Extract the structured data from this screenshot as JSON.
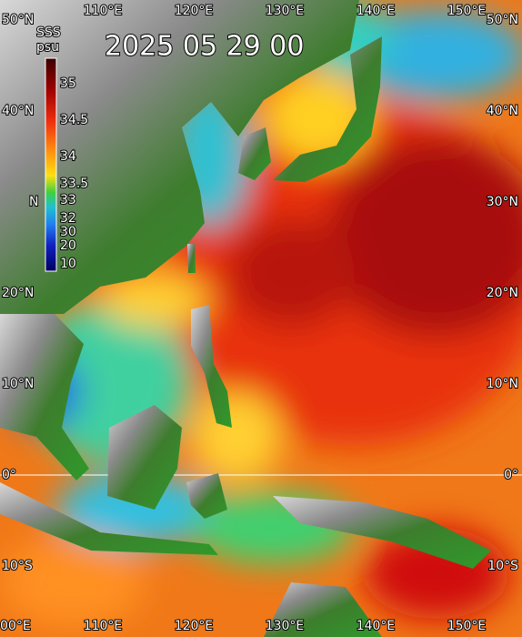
{
  "map": {
    "title": "2025 05 29 00",
    "colorbar": {
      "title": "SSS",
      "unit": "psu",
      "labels": [
        "35",
        "34.5",
        "34",
        "33.5",
        "33",
        "32",
        "30",
        "20",
        "10"
      ]
    },
    "lon_labels_top": [
      "110°E",
      "120°E",
      "130°E",
      "140°E",
      "150°E"
    ],
    "lon_labels_bottom": [
      "00°E",
      "110°E",
      "120°E",
      "130°E",
      "140°E",
      "150°E"
    ],
    "lat_labels_left": [
      "50°N",
      "40°N",
      "N",
      "20°N",
      "10°N",
      "0°",
      "10°S"
    ],
    "lat_labels_right": [
      "50°N",
      "40°N",
      "30°N",
      "20°N",
      "10°N",
      "0°",
      "10°S"
    ]
  }
}
